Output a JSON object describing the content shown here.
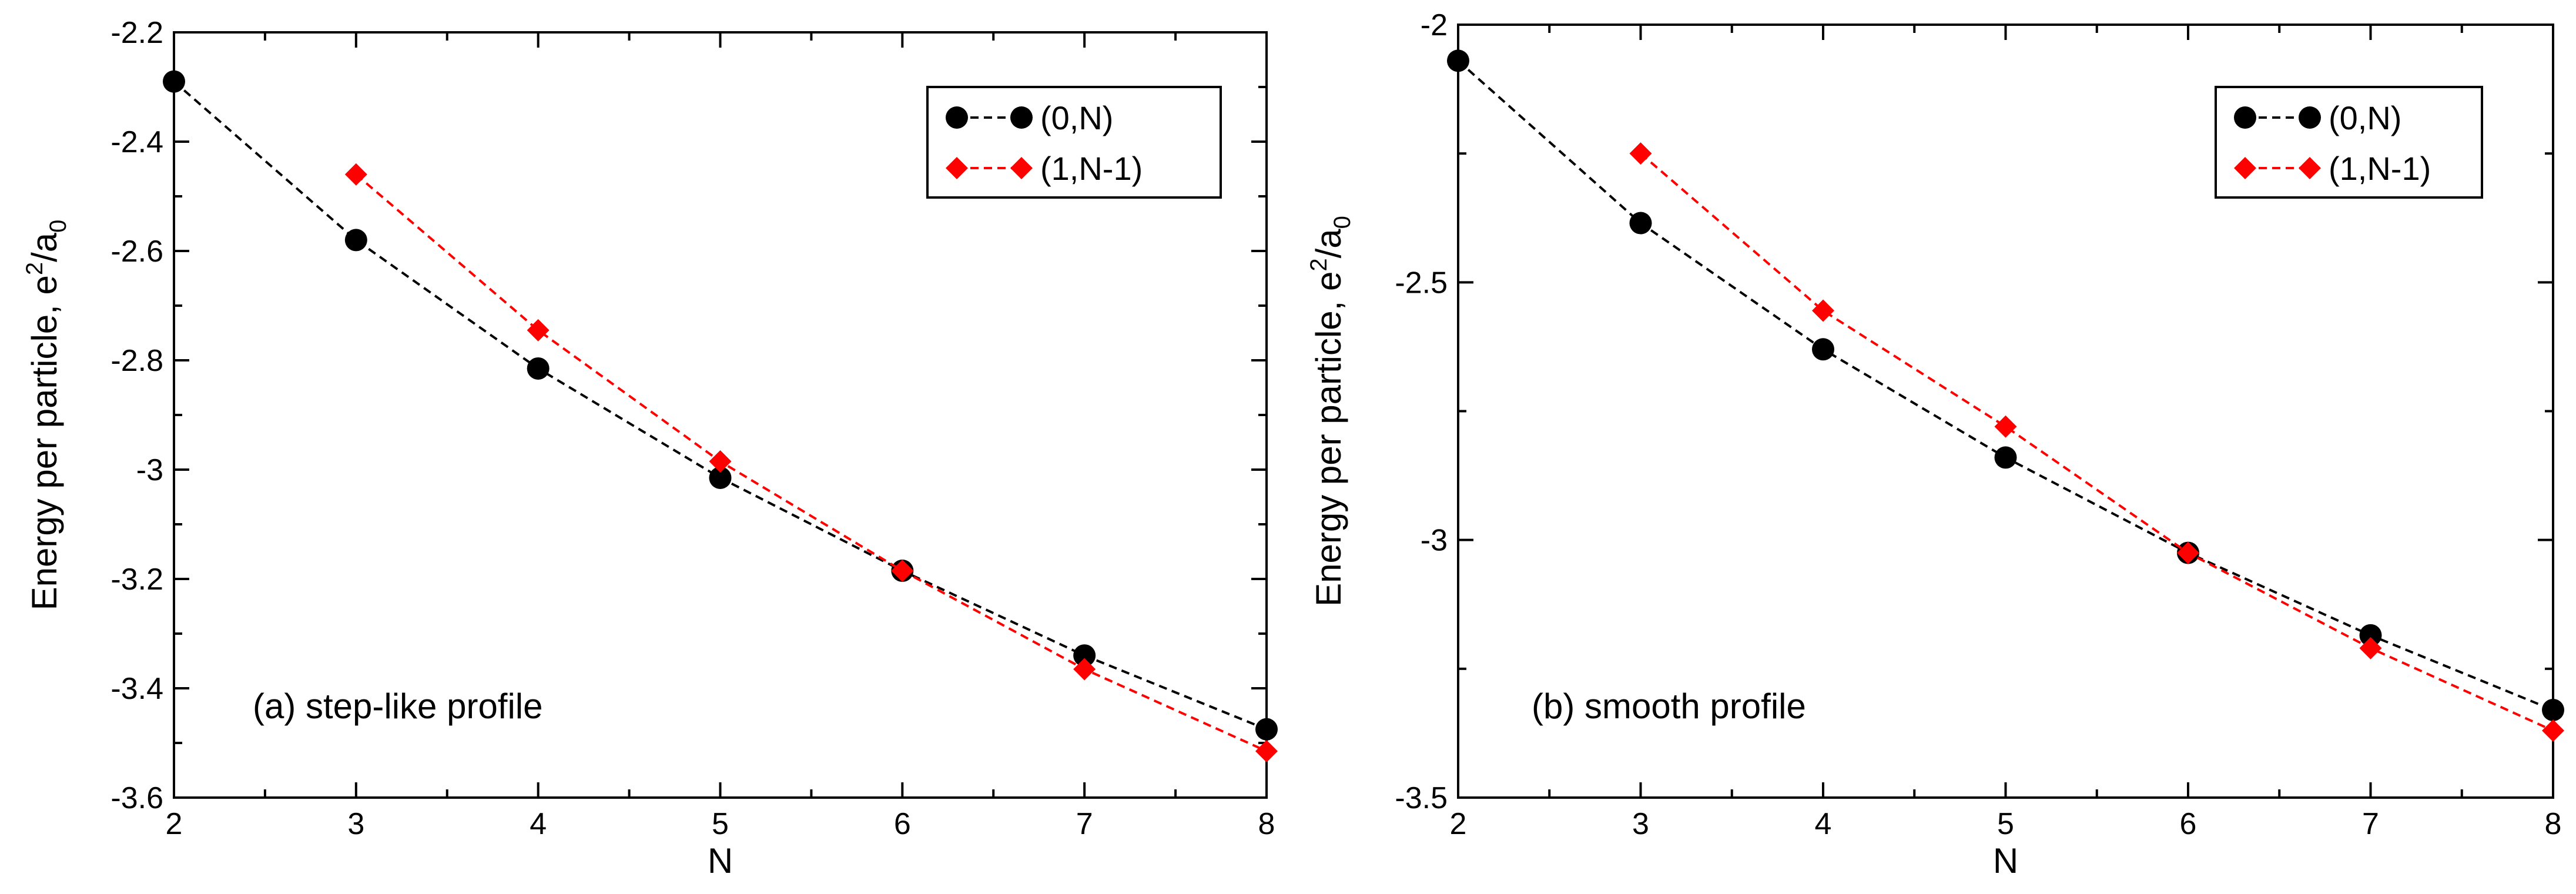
{
  "chart_data": [
    {
      "type": "line",
      "panel": "a",
      "annotation": "(a)  step-like profile",
      "xlabel": "N",
      "ylabel": "Energy per particle, e",
      "ylabel_sup": "2",
      "ylabel_mid": "/a",
      "ylabel_sub": "0",
      "xlim": [
        2,
        8
      ],
      "ylim": [
        -3.6,
        -2.2
      ],
      "xticks": [
        2,
        3,
        4,
        5,
        6,
        7,
        8
      ],
      "xtick_labels": [
        "2",
        "3",
        "4",
        "5",
        "6",
        "7",
        "8"
      ],
      "yticks": [
        -3.6,
        -3.4,
        -3.2,
        -3.0,
        -2.8,
        -2.6,
        -2.4,
        -2.2
      ],
      "ytick_labels": [
        "-3.6",
        "-3.4",
        "-3.2",
        "-3",
        "-2.8",
        "-2.6",
        "-2.4",
        "-2.2"
      ],
      "legend_position": "top-right",
      "series": [
        {
          "name": "(0,N)",
          "marker": "circle",
          "color": "#000000",
          "x": [
            2,
            3,
            4,
            5,
            6,
            7,
            8
          ],
          "y": [
            -2.29,
            -2.58,
            -2.815,
            -3.015,
            -3.185,
            -3.34,
            -3.475
          ]
        },
        {
          "name": "(1,N-1)",
          "marker": "diamond",
          "color": "#ff0000",
          "x": [
            3,
            4,
            5,
            6,
            7,
            8
          ],
          "y": [
            -2.46,
            -2.745,
            -2.985,
            -3.185,
            -3.365,
            -3.515
          ]
        }
      ]
    },
    {
      "type": "line",
      "panel": "b",
      "annotation": "(b)  smooth profile",
      "xlabel": "N",
      "ylabel": "Energy per particle, e",
      "ylabel_sup": "2",
      "ylabel_mid": "/a",
      "ylabel_sub": "0",
      "xlim": [
        2,
        8
      ],
      "ylim": [
        -3.5,
        -2.0
      ],
      "xticks": [
        2,
        3,
        4,
        5,
        6,
        7,
        8
      ],
      "xtick_labels": [
        "2",
        "3",
        "4",
        "5",
        "6",
        "7",
        "8"
      ],
      "yticks": [
        -3.5,
        -3.0,
        -2.5,
        -2.0
      ],
      "ytick_labels": [
        "-3.5",
        "-3",
        "-2.5",
        "-2"
      ],
      "legend_position": "top-right",
      "series": [
        {
          "name": "(0,N)",
          "marker": "circle",
          "color": "#000000",
          "x": [
            2,
            3,
            4,
            5,
            6,
            7,
            8
          ],
          "y": [
            -2.07,
            -2.385,
            -2.63,
            -2.84,
            -3.025,
            -3.185,
            -3.33
          ]
        },
        {
          "name": "(1,N-1)",
          "marker": "diamond",
          "color": "#ff0000",
          "x": [
            3,
            4,
            5,
            6,
            7,
            8
          ],
          "y": [
            -2.25,
            -2.555,
            -2.78,
            -3.025,
            -3.21,
            -3.37
          ]
        }
      ]
    }
  ]
}
